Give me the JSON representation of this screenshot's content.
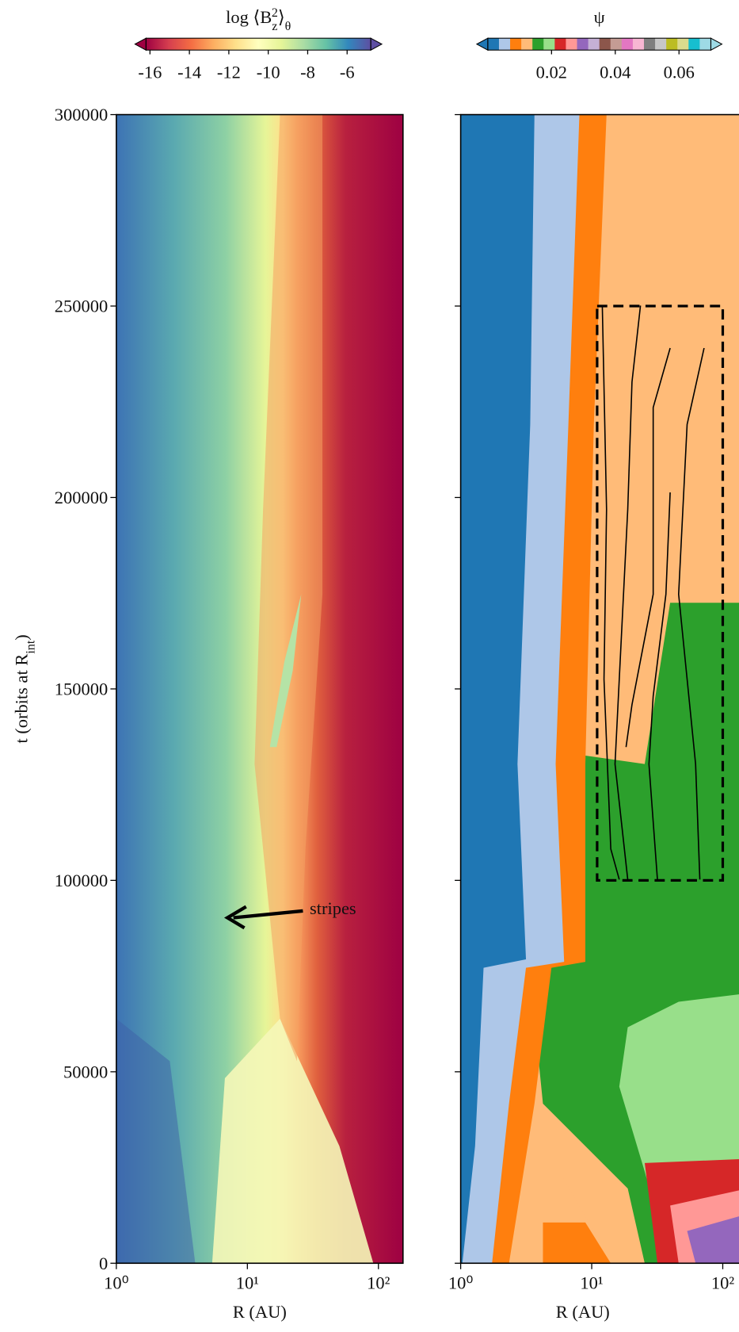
{
  "panels": [
    {
      "type": "heatmap",
      "xlabel": "R (AU)",
      "ylabel": [
        {
          "text": "t (orbits at R"
        },
        {
          "text": "int",
          "shift": "sub"
        },
        {
          "text": ")"
        }
      ],
      "xscale": "log",
      "xlim": [
        1,
        154
      ],
      "xticks": [
        {
          "value": 1,
          "label": "10⁰"
        },
        {
          "value": 10,
          "label": "10¹"
        },
        {
          "value": 100,
          "label": "10²"
        }
      ],
      "ylim": [
        0,
        300000
      ],
      "yticks": [
        0,
        50000,
        100000,
        150000,
        200000,
        250000,
        300000
      ],
      "show_ytick_labels": true,
      "colorbar": {
        "label": [
          {
            "text": "log ⟨B"
          },
          {
            "text": "z",
            "shift": "sub"
          },
          {
            "text": "2",
            "shift": "super"
          },
          {
            "text": "⟩"
          },
          {
            "text": "θ",
            "shift": "sub"
          }
        ],
        "colors": [
          "#9e0142",
          "#d53e4f",
          "#f46d43",
          "#fdae61",
          "#fee08b",
          "#ffffbf",
          "#e6f598",
          "#abdda4",
          "#66c2a5",
          "#3288bd",
          "#5e4fa2"
        ],
        "clim": [
          -16.2,
          -4.8
        ],
        "ticks": [
          -16,
          -14,
          -12,
          -10,
          -8,
          -6
        ]
      },
      "annotation": {
        "text": "stripes"
      }
    },
    {
      "type": "heatmap",
      "xlabel": "R (AU)",
      "xscale": "log",
      "xlim": [
        1,
        154
      ],
      "xticks": [
        {
          "value": 1,
          "label": "10⁰"
        },
        {
          "value": 10,
          "label": "10¹"
        },
        {
          "value": 100,
          "label": "10²"
        }
      ],
      "ylim": [
        0,
        300000
      ],
      "yticks": [
        0,
        50000,
        100000,
        150000,
        200000,
        250000,
        300000
      ],
      "show_ytick_labels": false,
      "colorbar": {
        "label": [
          {
            "text": "ψ"
          }
        ],
        "colors": [
          "#1f77b4",
          "#aec7e8",
          "#ff7f0e",
          "#ffbb78",
          "#2ca02c",
          "#98df8a",
          "#d62728",
          "#ff9896",
          "#9467bd",
          "#c5b0d5",
          "#8c564b",
          "#c49c94",
          "#e377c2",
          "#f7b6d2",
          "#7f7f7f",
          "#c7c7c7",
          "#bcbd22",
          "#dbdb8d",
          "#17becf",
          "#9edae5"
        ],
        "clim": [
          0,
          0.07
        ],
        "ticks": [
          0.02,
          0.04,
          0.06
        ]
      },
      "box": {
        "xlim": [
          11,
          100
        ],
        "ylim": [
          100000,
          250000
        ]
      }
    }
  ]
}
